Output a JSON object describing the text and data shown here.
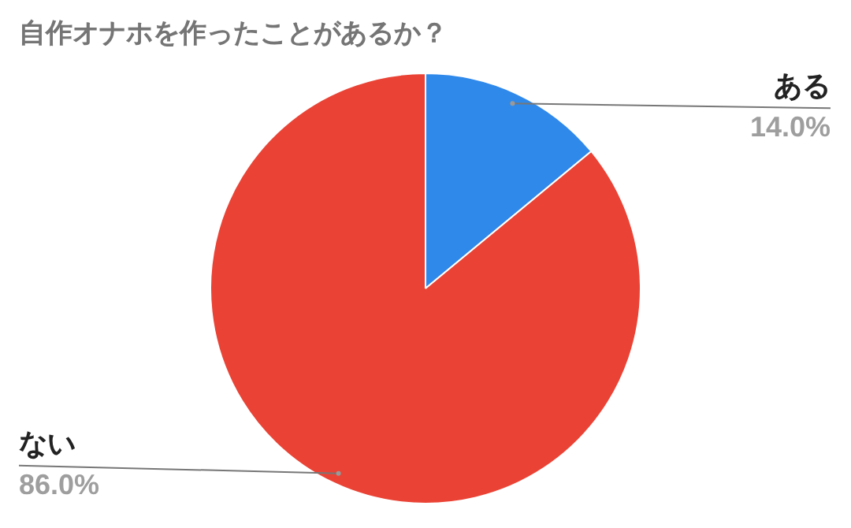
{
  "chart_data": {
    "type": "pie",
    "title": "自作オナホを作ったことがあるか？",
    "categories": [
      "ある",
      "ない"
    ],
    "values": [
      14,
      86
    ],
    "value_labels": [
      "14.0%",
      "86.0%"
    ],
    "colors": [
      "#2f89ea",
      "#ea4335"
    ],
    "legend": false
  }
}
